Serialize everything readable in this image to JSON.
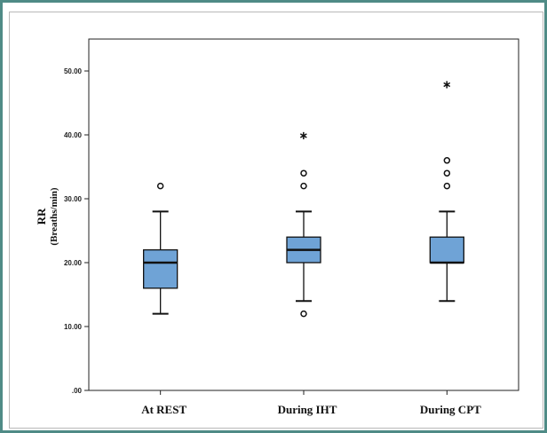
{
  "chart_data": {
    "type": "box",
    "ylabel": "RR",
    "ylabel_unit": "(Breaths/min)",
    "ylim": [
      0,
      55
    ],
    "yticks": [
      0,
      10,
      20,
      30,
      40,
      50
    ],
    "ytick_labels": [
      ".00",
      "10.00",
      "20.00",
      "30.00",
      "40.00",
      "50.00"
    ],
    "grid": false,
    "box_color": "#6fa3d6",
    "categories": [
      "At REST",
      "During IHT",
      "During CPT"
    ],
    "boxes": [
      {
        "category": "At REST",
        "min": 12,
        "q1": 16,
        "median": 20,
        "q3": 22,
        "max": 28,
        "outliers": [
          32
        ],
        "extremes": []
      },
      {
        "category": "During IHT",
        "min": 14,
        "q1": 20,
        "median": 22,
        "q3": 24,
        "max": 28,
        "outliers": [
          12,
          32,
          34
        ],
        "extremes": [
          40
        ]
      },
      {
        "category": "During CPT",
        "min": 14,
        "q1": 20,
        "median": 20,
        "q3": 24,
        "max": 28,
        "outliers": [
          32,
          34,
          36
        ],
        "extremes": [
          48
        ]
      }
    ]
  }
}
